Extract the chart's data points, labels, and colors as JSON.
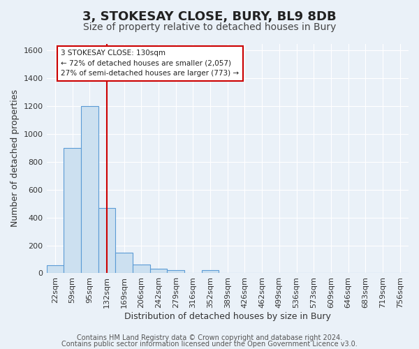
{
  "title": "3, STOKESAY CLOSE, BURY, BL9 8DB",
  "subtitle": "Size of property relative to detached houses in Bury",
  "xlabel": "Distribution of detached houses by size in Bury",
  "ylabel": "Number of detached properties",
  "bin_labels": [
    "22sqm",
    "59sqm",
    "95sqm",
    "132sqm",
    "169sqm",
    "206sqm",
    "242sqm",
    "279sqm",
    "316sqm",
    "352sqm",
    "389sqm",
    "426sqm",
    "462sqm",
    "499sqm",
    "536sqm",
    "573sqm",
    "609sqm",
    "646sqm",
    "683sqm",
    "719sqm",
    "756sqm"
  ],
  "bar_values": [
    55,
    900,
    1200,
    470,
    150,
    60,
    30,
    20,
    0,
    20,
    0,
    0,
    0,
    0,
    0,
    0,
    0,
    0,
    0,
    0,
    0
  ],
  "bar_color": "#cce0f0",
  "bar_edge_color": "#5b9bd5",
  "ylim": [
    0,
    1650
  ],
  "yticks": [
    0,
    200,
    400,
    600,
    800,
    1000,
    1200,
    1400,
    1600
  ],
  "vline_x": 3,
  "vline_color": "#cc0000",
  "annotation_title": "3 STOKESAY CLOSE: 130sqm",
  "annotation_line1": "← 72% of detached houses are smaller (2,057)",
  "annotation_line2": "27% of semi-detached houses are larger (773) →",
  "annotation_box_color": "#ffffff",
  "annotation_box_edge": "#cc0000",
  "footer1": "Contains HM Land Registry data © Crown copyright and database right 2024.",
  "footer2": "Contains public sector information licensed under the Open Government Licence v3.0.",
  "background_color": "#eaf1f8",
  "plot_bg_color": "#eaf1f8",
  "grid_color": "#ffffff",
  "title_fontsize": 13,
  "subtitle_fontsize": 10,
  "axis_label_fontsize": 9,
  "tick_fontsize": 8,
  "footer_fontsize": 7
}
